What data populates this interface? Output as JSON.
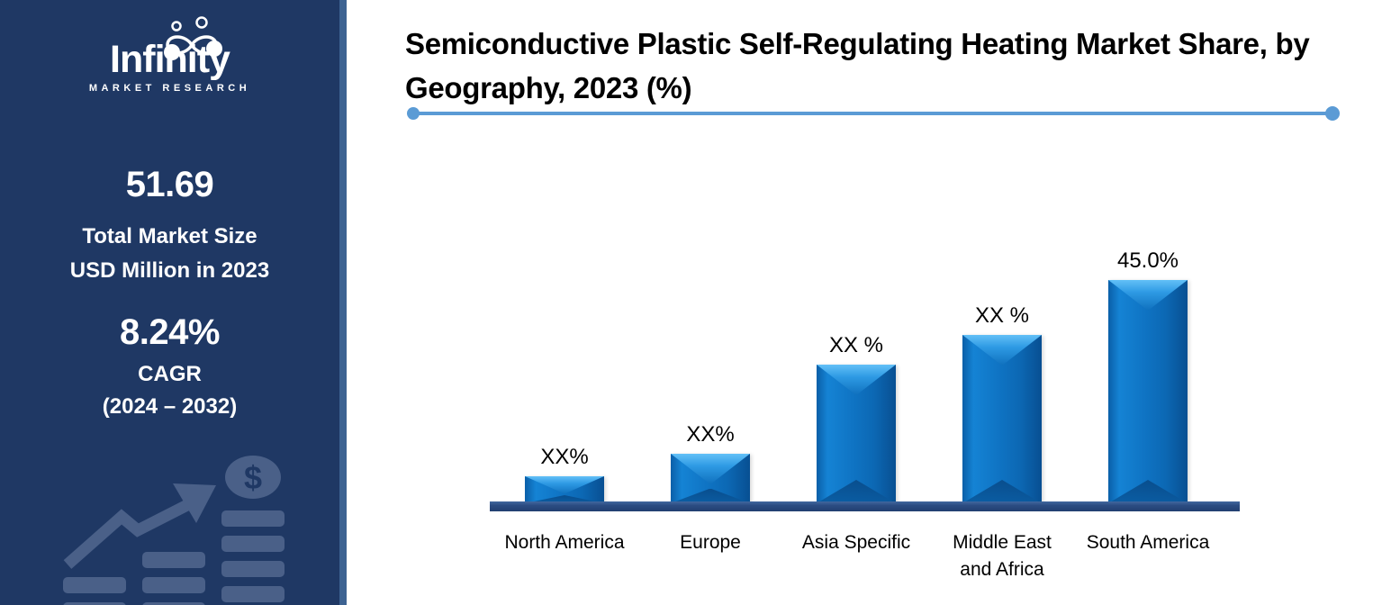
{
  "sidebar": {
    "logo": {
      "name": "Infinity",
      "subtitle": "MARKET RESEARCH"
    },
    "market_size": {
      "value": "51.69",
      "label_line1": "Total Market Size",
      "label_line2": "USD Million in 2023"
    },
    "cagr": {
      "value": "8.24%",
      "label": "CAGR",
      "period": "(2024 – 2032)"
    }
  },
  "header": {
    "title": "Semiconductive Plastic Self-Regulating Heating Market Share, by Geography, 2023 (%)",
    "title_lines": [
      "Semiconductive Plastic Self-Regulating Heating Market Share, by",
      "Geography, 2023 (%)"
    ]
  },
  "chart_data": {
    "type": "bar",
    "title": "Semiconductive Plastic Self-Regulating Heating Market Share, by Geography, 2023 (%)",
    "categories": [
      "North America",
      "Europe",
      "Asia Specific",
      "Middle East and Africa",
      "South America"
    ],
    "category_lines": [
      [
        "North America"
      ],
      [
        "Europe"
      ],
      [
        "Asia Specific"
      ],
      [
        "Middle East",
        "and Africa"
      ],
      [
        "South America"
      ]
    ],
    "data_labels": [
      "XX%",
      "XX%",
      "XX %",
      "XX %",
      "45.0%"
    ],
    "values_estimated_pct": [
      5.5,
      10,
      28,
      34,
      45.0
    ],
    "xlabel": "",
    "ylabel": "",
    "ylim": [
      0,
      50
    ],
    "grid": false,
    "legend": false,
    "bar_color_main": "#0E6FBE",
    "bar_color_light": "#54B5F3",
    "axis_color": "#2B4C82"
  },
  "colors": {
    "sidebar_bg": "#1F3864",
    "sidebar_border": "#3D6392",
    "watermark": "#4A6088",
    "accent_line": "#5B9BD5",
    "text_on_sidebar": "#FFFFFF",
    "chart_text": "#000000"
  }
}
